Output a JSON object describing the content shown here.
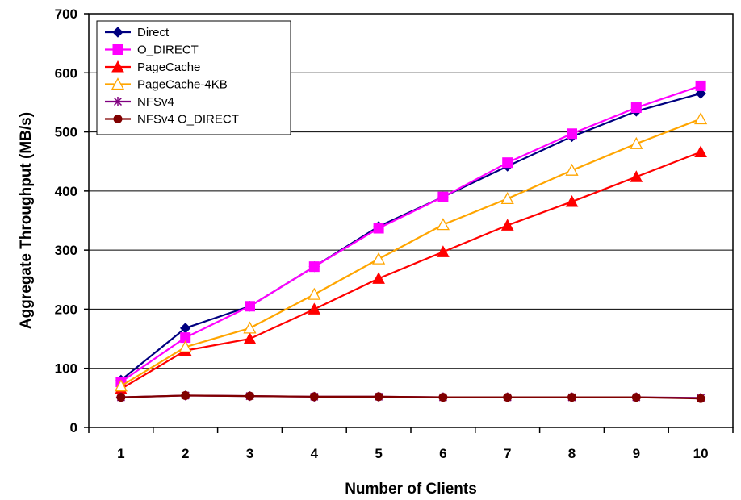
{
  "chart_data": {
    "type": "line",
    "title": "",
    "xlabel": "Number of Clients",
    "ylabel": "Aggregate Throughput (MB/s)",
    "x": [
      1,
      2,
      3,
      4,
      5,
      6,
      7,
      8,
      9,
      10
    ],
    "ylim": [
      0,
      700
    ],
    "yticks": [
      0,
      100,
      200,
      300,
      400,
      500,
      600,
      700
    ],
    "grid": "horizontal",
    "legend_position": "top-left",
    "series": [
      {
        "name": "Direct",
        "color": "#000080",
        "marker": "diamond",
        "values": [
          80,
          168,
          205,
          272,
          340,
          390,
          442,
          492,
          535,
          565
        ]
      },
      {
        "name": "O_DIRECT",
        "color": "#ff00ff",
        "marker": "square",
        "values": [
          77,
          152,
          205,
          272,
          337,
          390,
          448,
          497,
          541,
          578
        ]
      },
      {
        "name": "PageCache",
        "color": "#ff0000",
        "marker": "triangle",
        "values": [
          65,
          130,
          150,
          200,
          252,
          297,
          342,
          382,
          424,
          466
        ]
      },
      {
        "name": "PageCache-4KB",
        "color": "#ffa500",
        "marker": "triangle-open",
        "values": [
          70,
          136,
          168,
          225,
          285,
          343,
          387,
          435,
          480,
          522
        ]
      },
      {
        "name": "NFSv4",
        "color": "#800080",
        "marker": "asterisk",
        "values": [
          51,
          54,
          53,
          52,
          52,
          51,
          51,
          51,
          51,
          50
        ]
      },
      {
        "name": "NFSv4 O_DIRECT",
        "color": "#800000",
        "marker": "circle",
        "values": [
          51,
          54,
          53,
          52,
          52,
          51,
          51,
          51,
          51,
          49
        ]
      }
    ]
  }
}
